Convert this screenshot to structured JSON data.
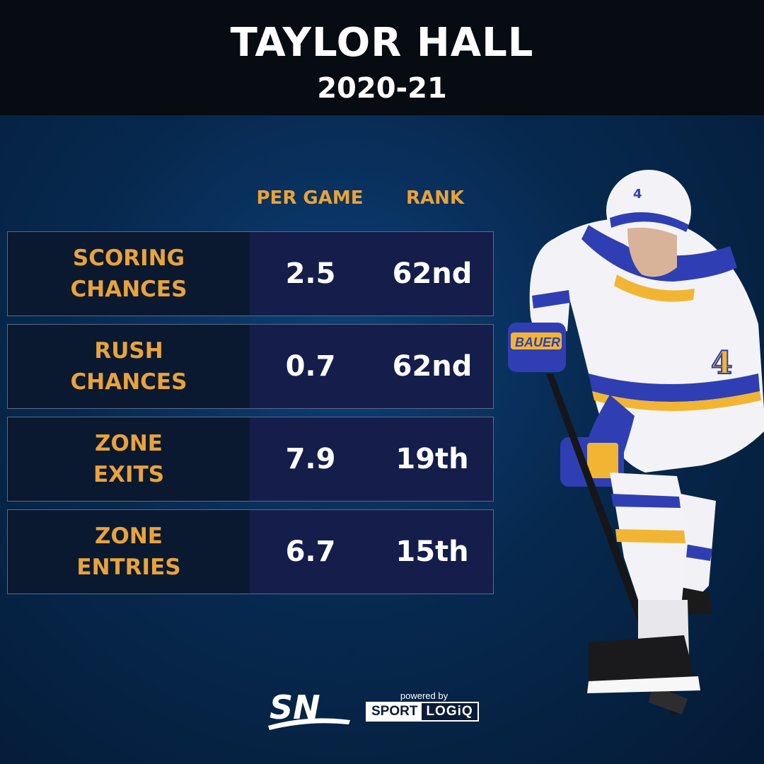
{
  "header": {
    "title": "TAYLOR HALL",
    "season": "2020-21"
  },
  "columns": {
    "per_game": "PER GAME",
    "rank": "RANK"
  },
  "rows": [
    {
      "label_line1": "SCORING",
      "label_line2": "CHANCES",
      "per_game": "2.5",
      "rank": "62nd"
    },
    {
      "label_line1": "RUSH",
      "label_line2": "CHANCES",
      "per_game": "0.7",
      "rank": "62nd"
    },
    {
      "label_line1": "ZONE",
      "label_line2": "EXITS",
      "per_game": "7.9",
      "rank": "19th"
    },
    {
      "label_line1": "ZONE",
      "label_line2": "ENTRIES",
      "per_game": "6.7",
      "rank": "15th"
    }
  ],
  "player_image": {
    "jersey_number": "4",
    "helmet_number": "4",
    "glove_brand": "BAUER"
  },
  "footer": {
    "sn_logo_text": "SN",
    "powered_by": "powered by",
    "sportlogiq_left": "SPORT",
    "sportlogiq_right": "LOGiQ"
  },
  "colors": {
    "accent": "#e8a33c",
    "background": "#07294f",
    "header": "#070b12"
  }
}
